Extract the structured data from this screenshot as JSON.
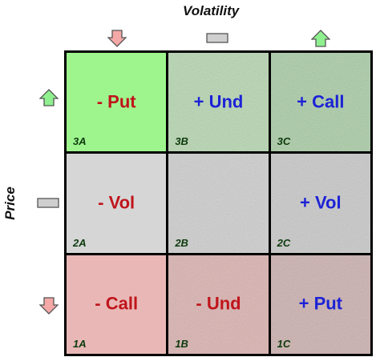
{
  "axes": {
    "volatility": "Volatility",
    "price": "Price"
  },
  "indicators": {
    "down_fill": "#f4a9a6",
    "up_fill": "#8ff08f",
    "neutral_fill": "#cfcfcf",
    "stroke": "#555555"
  },
  "cells": [
    {
      "id": "3A",
      "code": "3A",
      "label": "- Put",
      "label_color": "red",
      "bg": "#9ef58e",
      "texture": false
    },
    {
      "id": "3B",
      "code": "3B",
      "label": "+ Und",
      "label_color": "blue",
      "bg": "#b6d8b0",
      "texture": true
    },
    {
      "id": "3C",
      "code": "3C",
      "label": "+ Call",
      "label_color": "blue",
      "bg": "#a8cda4",
      "texture": true
    },
    {
      "id": "2A",
      "code": "2A",
      "label": "- Vol",
      "label_color": "red",
      "bg": "#d6d6d6",
      "texture": false
    },
    {
      "id": "2B",
      "code": "2B",
      "label": "",
      "label_color": "red",
      "bg": "#cfcfcf",
      "texture": true
    },
    {
      "id": "2C",
      "code": "2C",
      "label": "+ Vol",
      "label_color": "blue",
      "bg": "#c9c9c9",
      "texture": true
    },
    {
      "id": "1A",
      "code": "1A",
      "label": "- Call",
      "label_color": "red",
      "bg": "#e9b8b6",
      "texture": false
    },
    {
      "id": "1B",
      "code": "1B",
      "label": "- Und",
      "label_color": "red",
      "bg": "#dcb2b0",
      "texture": true
    },
    {
      "id": "1C",
      "code": "1C",
      "label": "+ Put",
      "label_color": "blue",
      "bg": "#cdb0ae",
      "texture": true
    }
  ]
}
